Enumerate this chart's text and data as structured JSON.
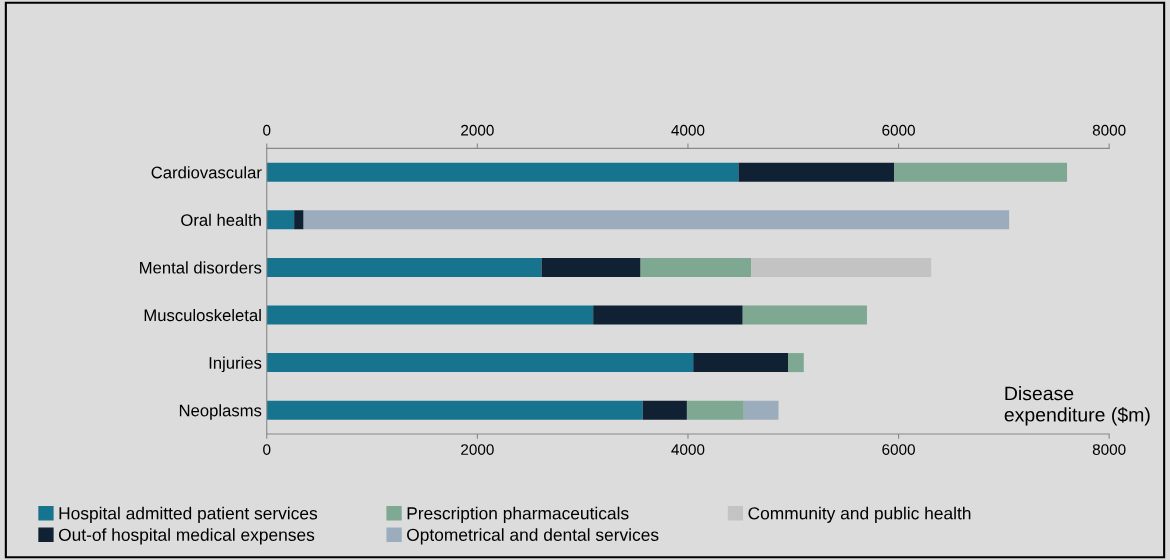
{
  "chart_data": {
    "type": "bar",
    "orientation": "horizontal",
    "stacked": true,
    "categories": [
      "Cardiovascular",
      "Oral health",
      "Mental disorders",
      "Musculoskeletal",
      "Injuries",
      "Neoplasms"
    ],
    "series": [
      {
        "name": "Hospital admitted patient services",
        "color": "#17748f",
        "values": [
          4480,
          260,
          2610,
          3100,
          4050,
          3570
        ]
      },
      {
        "name": "Out-of hospital medical expenses",
        "color": "#102133",
        "values": [
          1480,
          90,
          940,
          1420,
          900,
          420
        ]
      },
      {
        "name": "Prescription pharmaceuticals",
        "color": "#7ea892",
        "values": [
          1640,
          null,
          1050,
          1180,
          150,
          540
        ]
      },
      {
        "name": "Optometrical and dental services",
        "color": "#9badbd",
        "values": [
          null,
          6700,
          null,
          null,
          null,
          330
        ]
      },
      {
        "name": "Community and public health",
        "color": "#c3c3c3",
        "values": [
          null,
          null,
          1710,
          null,
          null,
          null
        ]
      }
    ],
    "xlim": [
      0,
      8000
    ],
    "xticks": [
      0,
      2000,
      4000,
      6000,
      8000
    ],
    "x2lim": [
      0,
      8000
    ],
    "x2ticks": [
      0,
      2000,
      4000,
      6000,
      8000
    ],
    "xlabel": "Disease expenditure ($m)",
    "grid": false,
    "legend": "bottom"
  }
}
